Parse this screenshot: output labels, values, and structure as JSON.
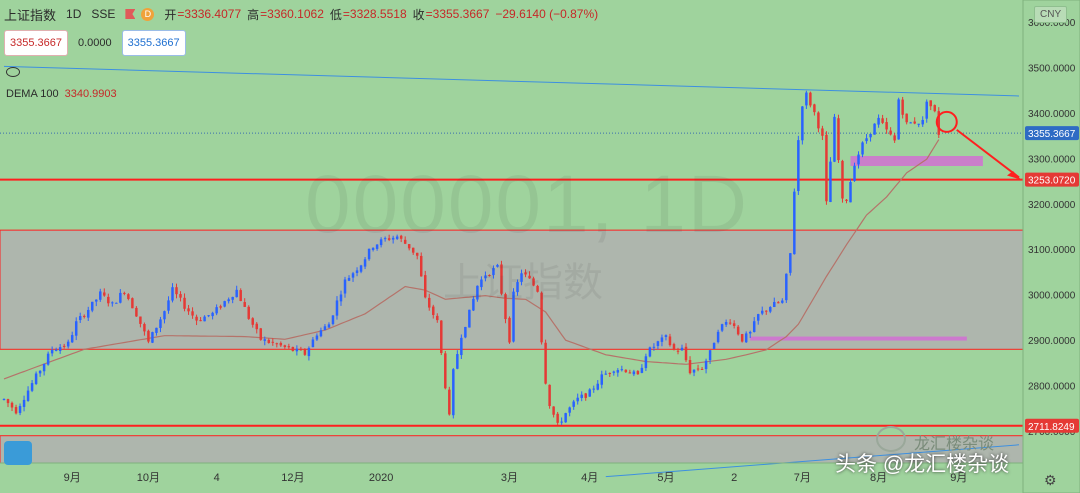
{
  "header": {
    "symbol": "上证指数",
    "timeframe": "1D",
    "exchange": "SSE",
    "d_badge": "D",
    "open_label": "开",
    "open_value": "=3336.4077",
    "high_label": "高",
    "high_value": "=3360.1062",
    "low_label": "低",
    "low_value": "=3328.5518",
    "close_label": "收",
    "close_value": "=3355.3667",
    "change_value": "−29.6140 (−0.87%)"
  },
  "price_boxes": {
    "sell": "3355.3667",
    "spread": "0.0000",
    "buy": "3355.3667"
  },
  "indicator_dema": {
    "label": "DEMA 100",
    "value": "3340.9903"
  },
  "currency": "CNY",
  "watermark": {
    "code": "000001, 1D",
    "name": "上证指数"
  },
  "footer": {
    "brand": "头条 @龙汇楼杂谈",
    "wechat": "龙汇楼杂谈"
  },
  "colors": {
    "background": "#9fd39d",
    "up": "#2962ff",
    "down": "#e53935",
    "ma": "#b5736a",
    "support": "#ff1f1f",
    "zone": "#b0b0b0",
    "highlight": "#d46ad6",
    "trend": "#3d8fe0"
  },
  "chart_data": {
    "type": "candlestick",
    "title": "000001, 1D",
    "ylim": [
      2630,
      3648
    ],
    "y_ticks": [
      3600,
      3500,
      3400,
      3300,
      3200,
      3100,
      3000,
      2900,
      2800,
      2700
    ],
    "y_tick_labels": [
      "3600.0000",
      "3500.0000",
      "3400.0000",
      "3300.0000",
      "3200.0000",
      "3100.0000",
      "3000.0000",
      "2900.0000",
      "2800.0000",
      "2700.0000"
    ],
    "x_labels": [
      "9月",
      "10月",
      "4",
      "12月",
      "2020",
      "3月",
      "4月",
      "5月",
      "2",
      "7月",
      "8月",
      "9月"
    ],
    "x_label_bar_index": [
      17,
      36,
      53,
      72,
      94,
      126,
      146,
      165,
      182,
      199,
      218,
      238
    ],
    "bar_count": 253,
    "price_labels": [
      {
        "value": 3355.3667,
        "text": "3355.3667",
        "kind": "last"
      },
      {
        "value": 3253.072,
        "text": "3253.0720",
        "kind": "line"
      },
      {
        "value": 2711.8249,
        "text": "2711.8249",
        "kind": "line"
      }
    ],
    "horizontal_lines": [
      3253.072,
      2711.8249
    ],
    "zones": [
      [
        2880,
        3142
      ],
      [
        2630,
        2690
      ]
    ],
    "highlights": [
      {
        "from": 3283,
        "to": 3305,
        "bar_from": 211,
        "bar_to": 244
      },
      {
        "from": 2900,
        "to": 2908,
        "bar_from": 186,
        "bar_to": 240
      }
    ],
    "trendlines": [
      {
        "from_bar": 0,
        "from": 3502,
        "to_bar": 253,
        "to": 3437
      },
      {
        "from_bar": 150,
        "from": 2600,
        "to_bar": 253,
        "to": 2670
      }
    ],
    "ma_label": "DEMA 100",
    "waypoints": [
      [
        0,
        2770
      ],
      [
        3,
        2745
      ],
      [
        8,
        2820
      ],
      [
        12,
        2880
      ],
      [
        16,
        2892
      ],
      [
        18,
        2938
      ],
      [
        22,
        2978
      ],
      [
        24,
        3002
      ],
      [
        27,
        2978
      ],
      [
        30,
        3010
      ],
      [
        33,
        2958
      ],
      [
        36,
        2895
      ],
      [
        40,
        2965
      ],
      [
        42,
        3010
      ],
      [
        45,
        2975
      ],
      [
        48,
        2945
      ],
      [
        52,
        2958
      ],
      [
        55,
        2985
      ],
      [
        58,
        3010
      ],
      [
        61,
        2950
      ],
      [
        64,
        2902
      ],
      [
        68,
        2890
      ],
      [
        72,
        2878
      ],
      [
        75,
        2870
      ],
      [
        78,
        2915
      ],
      [
        81,
        2935
      ],
      [
        83,
        2985
      ],
      [
        85,
        3030
      ],
      [
        89,
        3068
      ],
      [
        92,
        3108
      ],
      [
        95,
        3122
      ],
      [
        98,
        3128
      ],
      [
        101,
        3105
      ],
      [
        103,
        3085
      ],
      [
        105,
        2990
      ],
      [
        108,
        2940
      ],
      [
        110,
        2800
      ],
      [
        111,
        2730
      ],
      [
        112,
        2830
      ],
      [
        114,
        2912
      ],
      [
        116,
        2960
      ],
      [
        118,
        3020
      ],
      [
        120,
        3045
      ],
      [
        123,
        3060
      ],
      [
        125,
        2950
      ],
      [
        126,
        2902
      ],
      [
        127,
        3000
      ],
      [
        129,
        3050
      ],
      [
        131,
        3032
      ],
      [
        133,
        3010
      ],
      [
        134,
        2900
      ],
      [
        135,
        2810
      ],
      [
        136,
        2760
      ],
      [
        138,
        2712
      ],
      [
        140,
        2740
      ],
      [
        143,
        2770
      ],
      [
        146,
        2785
      ],
      [
        149,
        2820
      ],
      [
        152,
        2838
      ],
      [
        155,
        2835
      ],
      [
        158,
        2820
      ],
      [
        160,
        2870
      ],
      [
        163,
        2895
      ],
      [
        165,
        2905
      ],
      [
        167,
        2878
      ],
      [
        169,
        2880
      ],
      [
        171,
        2832
      ],
      [
        174,
        2840
      ],
      [
        176,
        2872
      ],
      [
        178,
        2925
      ],
      [
        181,
        2945
      ],
      [
        184,
        2902
      ],
      [
        186,
        2915
      ],
      [
        188,
        2955
      ],
      [
        191,
        2975
      ],
      [
        194,
        2985
      ],
      [
        195,
        3040
      ],
      [
        196,
        3090
      ],
      [
        197,
        3230
      ],
      [
        198,
        3340
      ],
      [
        199,
        3420
      ],
      [
        200,
        3440
      ],
      [
        202,
        3400
      ],
      [
        204,
        3345
      ],
      [
        205,
        3200
      ],
      [
        207,
        3385
      ],
      [
        209,
        3205
      ],
      [
        210,
        3210
      ],
      [
        212,
        3290
      ],
      [
        214,
        3330
      ],
      [
        216,
        3360
      ],
      [
        218,
        3385
      ],
      [
        220,
        3360
      ],
      [
        222,
        3338
      ],
      [
        223,
        3430
      ],
      [
        225,
        3375
      ],
      [
        227,
        3380
      ],
      [
        229,
        3380
      ],
      [
        230,
        3430
      ],
      [
        232,
        3400
      ],
      [
        233,
        3355
      ]
    ],
    "ma_waypoints": [
      [
        0,
        2815
      ],
      [
        20,
        2880
      ],
      [
        40,
        2910
      ],
      [
        60,
        2908
      ],
      [
        70,
        2902
      ],
      [
        80,
        2922
      ],
      [
        90,
        2958
      ],
      [
        95,
        2988
      ],
      [
        100,
        3018
      ],
      [
        105,
        3010
      ],
      [
        110,
        2990
      ],
      [
        120,
        2998
      ],
      [
        125,
        2992
      ],
      [
        130,
        2990
      ],
      [
        135,
        2962
      ],
      [
        140,
        2900
      ],
      [
        150,
        2868
      ],
      [
        160,
        2853
      ],
      [
        170,
        2847
      ],
      [
        180,
        2858
      ],
      [
        185,
        2868
      ],
      [
        190,
        2879
      ],
      [
        195,
        2908
      ],
      [
        198,
        2935
      ],
      [
        201,
        2980
      ],
      [
        205,
        3040
      ],
      [
        210,
        3110
      ],
      [
        215,
        3175
      ],
      [
        220,
        3215
      ],
      [
        225,
        3268
      ],
      [
        230,
        3298
      ],
      [
        233,
        3341
      ]
    ],
    "last_close": 3355.3667
  }
}
